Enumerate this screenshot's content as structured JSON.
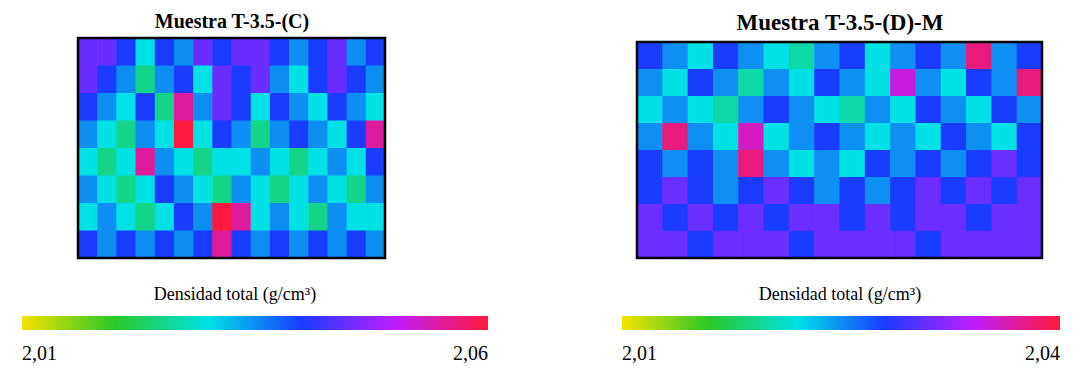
{
  "chart_data": [
    {
      "type": "heatmap",
      "title": "Muestra T-3.5-(C)",
      "colorbar_label": "Densidad total (g/cm³)",
      "color_range": [
        2.01,
        2.06
      ],
      "color_ticks": [
        {
          "value": 2.01,
          "label": "2,01"
        },
        {
          "value": 2.06,
          "label": "2,06"
        }
      ],
      "tick_labels": false,
      "cells": [
        [
          2.045,
          2.045,
          2.04,
          2.03,
          2.04,
          2.035,
          2.045,
          2.04,
          2.045,
          2.045,
          2.04,
          2.035,
          2.04,
          2.045,
          2.035,
          2.04
        ],
        [
          2.045,
          2.04,
          2.035,
          2.025,
          2.035,
          2.04,
          2.03,
          2.045,
          2.04,
          2.045,
          2.035,
          2.03,
          2.04,
          2.045,
          2.04,
          2.035
        ],
        [
          2.04,
          2.035,
          2.03,
          2.04,
          2.025,
          2.055,
          2.035,
          2.045,
          2.04,
          2.03,
          2.04,
          2.035,
          2.03,
          2.04,
          2.035,
          2.03
        ],
        [
          2.035,
          2.03,
          2.025,
          2.035,
          2.03,
          2.06,
          2.03,
          2.04,
          2.035,
          2.025,
          2.035,
          2.04,
          2.035,
          2.03,
          2.04,
          2.055
        ],
        [
          2.03,
          2.025,
          2.03,
          2.055,
          2.035,
          2.03,
          2.025,
          2.03,
          2.03,
          2.035,
          2.03,
          2.025,
          2.03,
          2.035,
          2.03,
          2.04
        ],
        [
          2.035,
          2.03,
          2.025,
          2.03,
          2.04,
          2.035,
          2.03,
          2.025,
          2.035,
          2.03,
          2.025,
          2.03,
          2.035,
          2.03,
          2.025,
          2.035
        ],
        [
          2.03,
          2.035,
          2.03,
          2.025,
          2.03,
          2.04,
          2.035,
          2.06,
          2.055,
          2.03,
          2.035,
          2.03,
          2.025,
          2.035,
          2.03,
          2.03
        ],
        [
          2.04,
          2.035,
          2.04,
          2.035,
          2.04,
          2.035,
          2.04,
          2.055,
          2.04,
          2.035,
          2.04,
          2.035,
          2.04,
          2.035,
          2.04,
          2.035
        ]
      ]
    },
    {
      "type": "heatmap",
      "title": "Muestra T-3.5-(D)-M",
      "colorbar_label": "Densidad total (g/cm³)",
      "color_range": [
        2.01,
        2.04
      ],
      "color_ticks": [
        {
          "value": 2.01,
          "label": "2,01"
        },
        {
          "value": 2.04,
          "label": "2,04"
        }
      ],
      "tick_labels": false,
      "cells": [
        [
          2.028,
          2.025,
          2.022,
          2.028,
          2.025,
          2.022,
          2.02,
          2.025,
          2.028,
          2.022,
          2.025,
          2.028,
          2.025,
          2.038,
          2.025,
          2.028
        ],
        [
          2.025,
          2.022,
          2.028,
          2.025,
          2.02,
          2.025,
          2.022,
          2.028,
          2.025,
          2.022,
          2.035,
          2.025,
          2.022,
          2.028,
          2.025,
          2.038
        ],
        [
          2.022,
          2.025,
          2.022,
          2.02,
          2.025,
          2.028,
          2.025,
          2.022,
          2.02,
          2.025,
          2.022,
          2.028,
          2.025,
          2.022,
          2.028,
          2.025
        ],
        [
          2.025,
          2.038,
          2.025,
          2.022,
          2.036,
          2.022,
          2.025,
          2.028,
          2.025,
          2.022,
          2.025,
          2.022,
          2.028,
          2.025,
          2.022,
          2.028
        ],
        [
          2.028,
          2.025,
          2.028,
          2.025,
          2.038,
          2.025,
          2.022,
          2.025,
          2.022,
          2.028,
          2.025,
          2.028,
          2.025,
          2.028,
          2.031,
          2.028
        ],
        [
          2.028,
          2.031,
          2.028,
          2.025,
          2.028,
          2.031,
          2.028,
          2.025,
          2.028,
          2.025,
          2.028,
          2.031,
          2.028,
          2.031,
          2.028,
          2.031
        ],
        [
          2.031,
          2.028,
          2.031,
          2.028,
          2.031,
          2.028,
          2.031,
          2.031,
          2.028,
          2.031,
          2.028,
          2.031,
          2.031,
          2.028,
          2.031,
          2.031
        ],
        [
          2.031,
          2.031,
          2.028,
          2.031,
          2.031,
          2.031,
          2.028,
          2.031,
          2.031,
          2.031,
          2.031,
          2.028,
          2.031,
          2.031,
          2.031,
          2.031
        ]
      ]
    }
  ]
}
